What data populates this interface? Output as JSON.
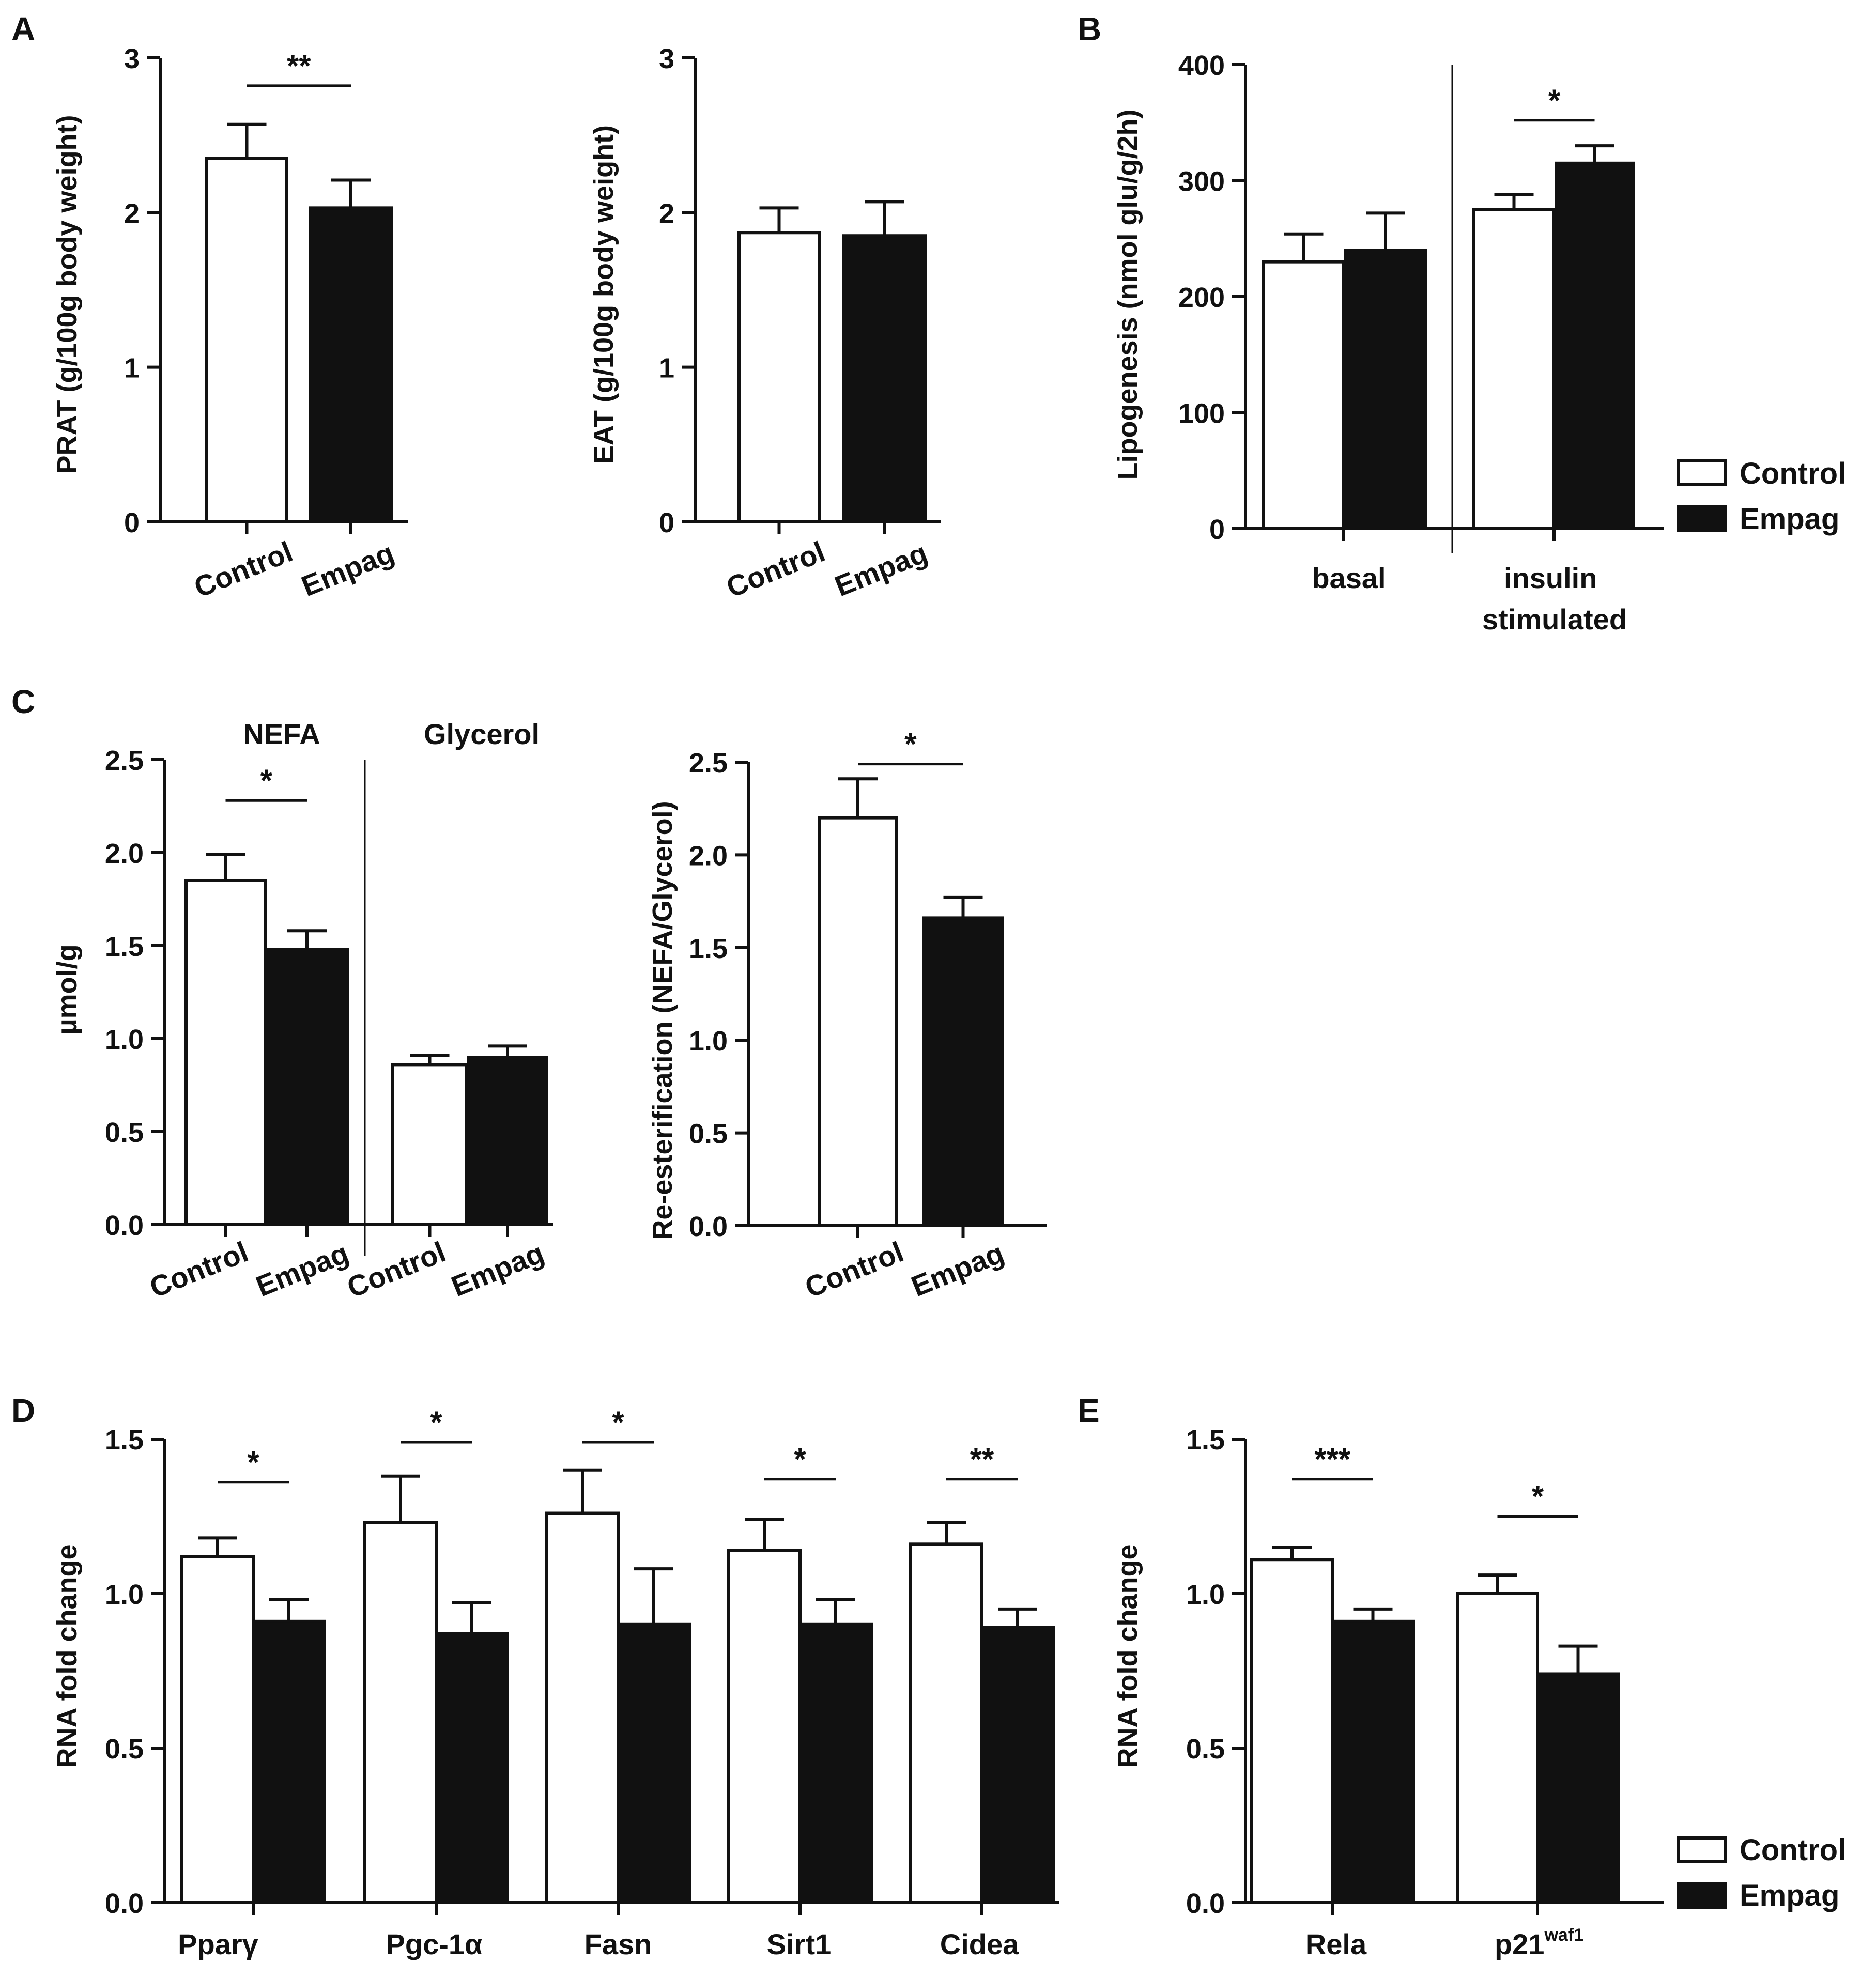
{
  "colors": {
    "control": "#ffffff",
    "empag": "#111111",
    "stroke": "#111111"
  },
  "legend": {
    "control": "Control",
    "empag": "Empag"
  },
  "chart_data": [
    {
      "id": "A-PRAT",
      "panel": "A",
      "type": "bar",
      "ylabel": "PRAT (g/100g body weight)",
      "ylim": [
        0,
        3
      ],
      "yticks": [
        0,
        1,
        2,
        3
      ],
      "categories": [
        "Control",
        "Empag"
      ],
      "series": [
        {
          "name": "bars",
          "values": [
            2.35,
            2.03
          ],
          "errors": [
            0.22,
            0.18
          ],
          "groups": [
            "control",
            "empag"
          ]
        }
      ],
      "significance": [
        {
          "label": "**",
          "between": [
            0,
            1
          ],
          "y": 2.82
        }
      ]
    },
    {
      "id": "A-EAT",
      "panel": "",
      "type": "bar",
      "ylabel": "EAT (g/100g body weight)",
      "ylim": [
        0,
        3
      ],
      "yticks": [
        0,
        1,
        2,
        3
      ],
      "categories": [
        "Control",
        "Empag"
      ],
      "series": [
        {
          "name": "bars",
          "values": [
            1.87,
            1.85
          ],
          "errors": [
            0.16,
            0.22
          ],
          "groups": [
            "control",
            "empag"
          ]
        }
      ],
      "significance": []
    },
    {
      "id": "B",
      "panel": "B",
      "type": "bar",
      "ylabel": "Lipogenesis (nmol glu/g/2h)",
      "ylim": [
        0,
        400
      ],
      "yticks": [
        0,
        100,
        200,
        300,
        400
      ],
      "groups": [
        "basal",
        "insulin stimulated"
      ],
      "series": [
        {
          "name": "Control",
          "values": [
            230,
            275
          ],
          "errors": [
            24,
            13
          ]
        },
        {
          "name": "Empag",
          "values": [
            240,
            315
          ],
          "errors": [
            32,
            15
          ]
        }
      ],
      "significance": [
        {
          "label": "*",
          "group": 1,
          "y": 352
        }
      ],
      "legend": "right"
    },
    {
      "id": "C-umol",
      "panel": "C",
      "type": "bar",
      "ylabel": "µmol/g",
      "ylim": [
        0,
        2.5
      ],
      "yticks": [
        "0.0",
        "0.5",
        "1.0",
        "1.5",
        "2.0",
        "2.5"
      ],
      "section_labels": [
        "NEFA",
        "Glycerol"
      ],
      "categories": [
        "Control",
        "Empag",
        "Control",
        "Empag"
      ],
      "series": [
        {
          "name": "bars",
          "values": [
            1.85,
            1.48,
            0.86,
            0.9
          ],
          "errors": [
            0.14,
            0.1,
            0.05,
            0.06
          ],
          "groups": [
            "control",
            "empag",
            "control",
            "empag"
          ]
        }
      ],
      "significance": [
        {
          "label": "*",
          "between": [
            0,
            1
          ],
          "y": 2.28
        }
      ]
    },
    {
      "id": "C-reest",
      "panel": "",
      "type": "bar",
      "ylabel": "Re-esterification (NEFA/Glycerol)",
      "ylim": [
        0,
        2.5
      ],
      "yticks": [
        "0.0",
        "0.5",
        "1.0",
        "1.5",
        "2.0",
        "2.5"
      ],
      "categories": [
        "Control",
        "Empag"
      ],
      "series": [
        {
          "name": "bars",
          "values": [
            2.2,
            1.66
          ],
          "errors": [
            0.21,
            0.11
          ],
          "groups": [
            "control",
            "empag"
          ]
        }
      ],
      "significance": [
        {
          "label": "*",
          "between": [
            0,
            1
          ],
          "y": 2.49
        }
      ]
    },
    {
      "id": "D",
      "panel": "D",
      "type": "bar",
      "ylabel": "RNA fold change",
      "ylim": [
        0,
        1.5
      ],
      "yticks": [
        "0.0",
        "0.5",
        "1.0",
        "1.5"
      ],
      "groups": [
        "Pparγ",
        "Pgc-1α",
        "Fasn",
        "Sirt1",
        "Cidea"
      ],
      "series": [
        {
          "name": "Control",
          "values": [
            1.12,
            1.23,
            1.26,
            1.14,
            1.16
          ],
          "errors": [
            0.06,
            0.15,
            0.14,
            0.1,
            0.07
          ]
        },
        {
          "name": "Empag",
          "values": [
            0.91,
            0.87,
            0.9,
            0.9,
            0.89
          ],
          "errors": [
            0.07,
            0.1,
            0.18,
            0.08,
            0.06
          ]
        }
      ],
      "significance": [
        {
          "label": "*",
          "group": 0,
          "y": 1.36
        },
        {
          "label": "*",
          "group": 1,
          "y": 1.49
        },
        {
          "label": "*",
          "group": 2,
          "y": 1.49
        },
        {
          "label": "*",
          "group": 3,
          "y": 1.37
        },
        {
          "label": "**",
          "group": 4,
          "y": 1.37
        }
      ]
    },
    {
      "id": "E",
      "panel": "E",
      "type": "bar",
      "ylabel": "RNA fold change",
      "ylim": [
        0,
        1.5
      ],
      "yticks": [
        "0.0",
        "0.5",
        "1.0",
        "1.5"
      ],
      "groups": [
        "Rela",
        "p21"
      ],
      "group_superscripts": [
        "",
        "waf1"
      ],
      "series": [
        {
          "name": "Control",
          "values": [
            1.11,
            1.0
          ],
          "errors": [
            0.04,
            0.06
          ]
        },
        {
          "name": "Empag",
          "values": [
            0.91,
            0.74
          ],
          "errors": [
            0.04,
            0.09
          ]
        }
      ],
      "significance": [
        {
          "label": "***",
          "group": 0,
          "y": 1.37
        },
        {
          "label": "*",
          "group": 1,
          "y": 1.25
        }
      ],
      "legend": "right"
    }
  ]
}
